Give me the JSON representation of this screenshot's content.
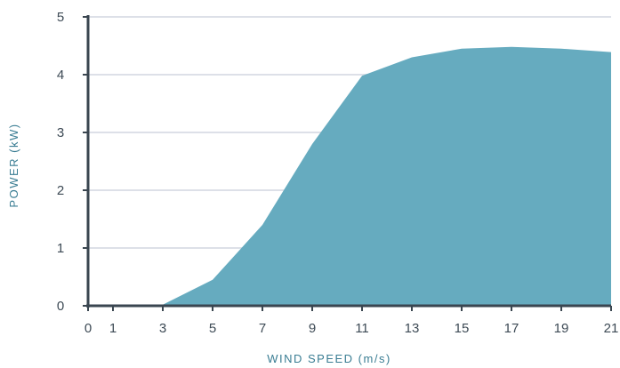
{
  "chart_data": {
    "type": "area",
    "title": "",
    "xlabel": "WIND SPEED (m/s)",
    "ylabel": "POWER (kW)",
    "xlim": [
      0,
      21
    ],
    "ylim": [
      0,
      5
    ],
    "x_ticks": [
      "0",
      "1",
      "3",
      "5",
      "7",
      "9",
      "11",
      "13",
      "15",
      "17",
      "19",
      "21"
    ],
    "y_ticks": [
      "0",
      "1",
      "2",
      "3",
      "4",
      "5"
    ],
    "grid": "horizontal",
    "legend": "none",
    "series": [
      {
        "x": [
          0,
          1,
          2,
          3,
          5,
          7,
          9,
          11,
          13,
          15,
          17,
          19,
          21
        ],
        "values": [
          0,
          0,
          0,
          0.02,
          0.45,
          1.4,
          2.8,
          3.98,
          4.3,
          4.45,
          4.48,
          4.45,
          4.39
        ],
        "color": "#66abbf"
      }
    ]
  }
}
